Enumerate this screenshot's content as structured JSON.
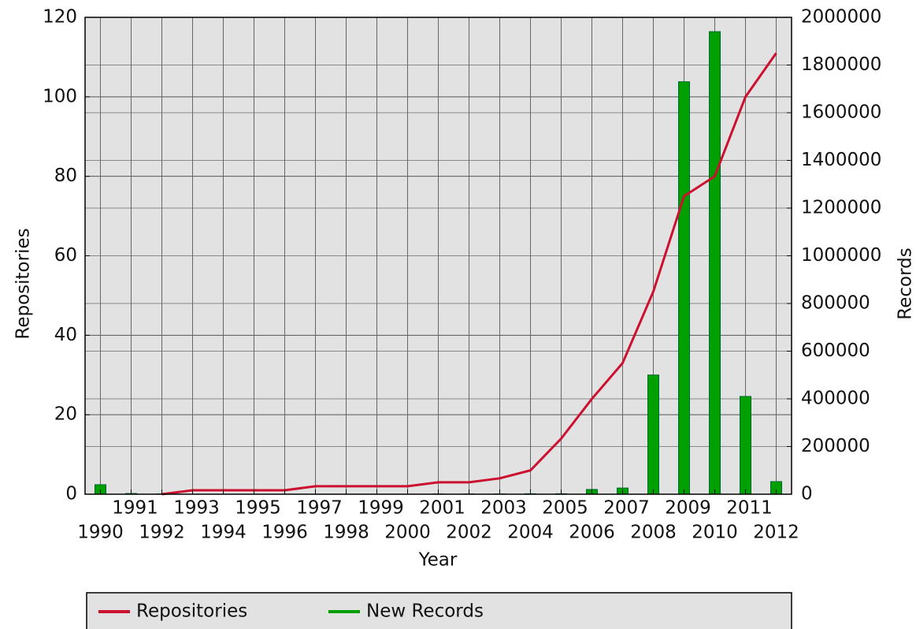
{
  "chart_data": {
    "type": "bar_line",
    "x_label": "Year",
    "y_label": "Repositories",
    "y2_label": "Records",
    "categories": [
      "1990",
      "1991",
      "1992",
      "1993",
      "1994",
      "1995",
      "1996",
      "1997",
      "1998",
      "1999",
      "2000",
      "2001",
      "2002",
      "2003",
      "2004",
      "2005",
      "2006",
      "2007",
      "2008",
      "2009",
      "2010",
      "2011",
      "2012"
    ],
    "series": [
      {
        "name": "Repositories",
        "color": "#cc1030",
        "kind": "line",
        "axis": "y",
        "values": [
          null,
          null,
          0,
          1,
          1,
          1,
          1,
          2,
          2,
          2,
          2,
          3,
          3,
          4,
          6,
          14,
          24,
          33,
          51,
          75,
          80,
          100,
          111
        ]
      },
      {
        "name": "New Records",
        "color": "#00a000",
        "kind": "bar",
        "axis": "y2",
        "values": [
          40000,
          3000,
          1000,
          0,
          0,
          0,
          0,
          0,
          0,
          0,
          0,
          1000,
          1000,
          1000,
          2000,
          2000,
          20000,
          26000,
          500000,
          1730000,
          1940000,
          410000,
          53000
        ]
      }
    ],
    "ylim": [
      0,
      120
    ],
    "yticks": [
      0,
      20,
      40,
      60,
      80,
      100,
      120
    ],
    "y2lim": [
      0,
      2000000
    ],
    "y2ticks": [
      0,
      200000,
      400000,
      600000,
      800000,
      1000000,
      1200000,
      1400000,
      1600000,
      1800000,
      2000000
    ],
    "grid": true
  }
}
